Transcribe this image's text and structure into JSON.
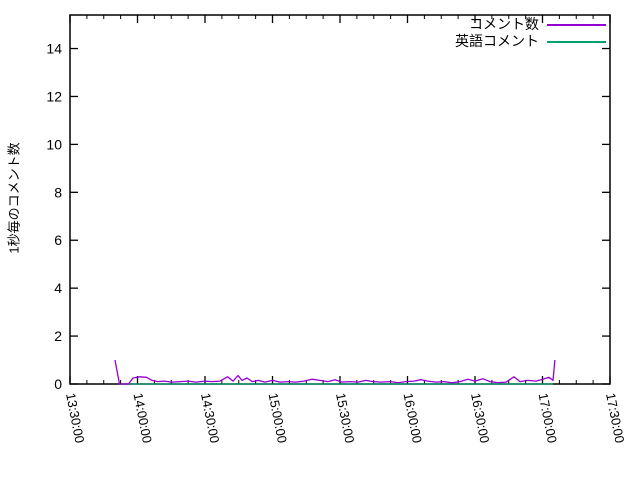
{
  "window": {
    "background": "#ffffff",
    "axis_color": "#000000",
    "text_color": "#000000"
  },
  "chart_data": {
    "type": "line",
    "title": "",
    "xlabel": "",
    "ylabel": "1秒毎のコメント数",
    "grid": false,
    "legend_position": "top-right-inside",
    "x_start": "13:30:00",
    "x_end": "17:30:00",
    "x_major_ticks": [
      "13:30:00",
      "14:00:00",
      "14:30:00",
      "15:00:00",
      "15:30:00",
      "16:00:00",
      "16:30:00",
      "17:00:00",
      "17:30:00"
    ],
    "x_minor_tick_seconds": 450,
    "y_ticks": [
      0,
      2,
      4,
      6,
      8,
      10,
      12,
      14
    ],
    "ylim": [
      0,
      15.4
    ],
    "series": [
      {
        "name": "コメント数",
        "color": "#9400d3",
        "points": [
          [
            "13:50:00",
            1.0
          ],
          [
            "13:52:00",
            0.0
          ],
          [
            "13:56:00",
            0.0
          ],
          [
            "13:58:00",
            0.25
          ],
          [
            "14:01:00",
            0.3
          ],
          [
            "14:04:00",
            0.28
          ],
          [
            "14:06:30",
            0.15
          ],
          [
            "14:09:00",
            0.1
          ],
          [
            "14:12:00",
            0.12
          ],
          [
            "14:15:00",
            0.08
          ],
          [
            "14:19:00",
            0.1
          ],
          [
            "14:22:30",
            0.12
          ],
          [
            "14:26:00",
            0.08
          ],
          [
            "14:30:00",
            0.12
          ],
          [
            "14:33:00",
            0.1
          ],
          [
            "14:36:40",
            0.12
          ],
          [
            "14:40:00",
            0.3
          ],
          [
            "14:42:30",
            0.12
          ],
          [
            "14:44:40",
            0.35
          ],
          [
            "14:46:30",
            0.15
          ],
          [
            "14:48:40",
            0.25
          ],
          [
            "14:51:00",
            0.1
          ],
          [
            "14:53:40",
            0.15
          ],
          [
            "14:56:40",
            0.08
          ],
          [
            "15:00:00",
            0.15
          ],
          [
            "15:03:20",
            0.08
          ],
          [
            "15:06:50",
            0.1
          ],
          [
            "15:10:20",
            0.08
          ],
          [
            "15:14:00",
            0.12
          ],
          [
            "15:17:30",
            0.2
          ],
          [
            "15:21:00",
            0.15
          ],
          [
            "15:24:40",
            0.1
          ],
          [
            "15:27:50",
            0.18
          ],
          [
            "15:30:50",
            0.08
          ],
          [
            "15:34:30",
            0.1
          ],
          [
            "15:38:00",
            0.08
          ],
          [
            "15:41:30",
            0.15
          ],
          [
            "15:44:40",
            0.1
          ],
          [
            "15:48:10",
            0.08
          ],
          [
            "15:52:10",
            0.1
          ],
          [
            "15:55:50",
            0.06
          ],
          [
            "15:59:20",
            0.1
          ],
          [
            "16:02:50",
            0.12
          ],
          [
            "16:06:00",
            0.18
          ],
          [
            "16:09:00",
            0.12
          ],
          [
            "16:12:40",
            0.08
          ],
          [
            "16:16:10",
            0.1
          ],
          [
            "16:19:50",
            0.05
          ],
          [
            "16:23:20",
            0.1
          ],
          [
            "16:26:50",
            0.2
          ],
          [
            "16:30:00",
            0.12
          ],
          [
            "16:33:30",
            0.22
          ],
          [
            "16:36:40",
            0.1
          ],
          [
            "16:40:10",
            0.06
          ],
          [
            "16:43:50",
            0.08
          ],
          [
            "16:47:20",
            0.3
          ],
          [
            "16:50:00",
            0.1
          ],
          [
            "16:53:30",
            0.15
          ],
          [
            "16:57:00",
            0.12
          ],
          [
            "17:00:10",
            0.2
          ],
          [
            "17:02:50",
            0.28
          ],
          [
            "17:04:40",
            0.15
          ],
          [
            "17:05:30",
            1.0
          ]
        ]
      },
      {
        "name": "英語コメント",
        "color": "#009e73",
        "points": [
          [
            "13:56:00",
            0.0
          ],
          [
            "17:04:40",
            0.0
          ]
        ]
      }
    ]
  }
}
